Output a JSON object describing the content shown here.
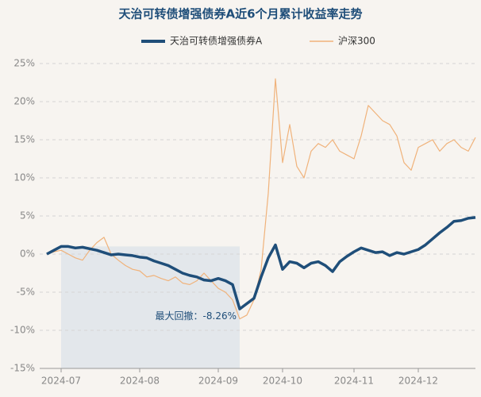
{
  "chart_data": {
    "type": "line",
    "title": "天治可转债增强债券A近6个月累计收益率走势",
    "annotation": "最大回撤：-8.26%",
    "categories": [
      null,
      null,
      "2024-07",
      null,
      null,
      null,
      null,
      null,
      null,
      null,
      null,
      null,
      null,
      "2024-08",
      null,
      null,
      null,
      null,
      null,
      null,
      null,
      null,
      null,
      null,
      "2024-09",
      null,
      null,
      null,
      null,
      null,
      null,
      null,
      null,
      "2024-10",
      null,
      null,
      null,
      null,
      null,
      null,
      null,
      null,
      null,
      "2024-11",
      null,
      null,
      null,
      null,
      null,
      null,
      null,
      null,
      "2024-12",
      null,
      null,
      null,
      null,
      null,
      null,
      null,
      null
    ],
    "series": [
      {
        "name": "天治可转债增强债券A",
        "color": "#1f4e79",
        "values": [
          0.0,
          0.5,
          1.0,
          1.0,
          0.8,
          0.9,
          0.7,
          0.5,
          0.2,
          -0.1,
          0.0,
          -0.1,
          -0.2,
          -0.4,
          -0.5,
          -0.9,
          -1.2,
          -1.5,
          -2.0,
          -2.5,
          -2.8,
          -3.0,
          -3.4,
          -3.5,
          -3.2,
          -3.5,
          -4.0,
          -7.2,
          -6.5,
          -5.8,
          -3.0,
          -0.5,
          1.2,
          -2.0,
          -1.0,
          -1.2,
          -1.8,
          -1.2,
          -1.0,
          -1.5,
          -2.3,
          -1.0,
          -0.3,
          0.3,
          0.8,
          0.5,
          0.2,
          0.3,
          -0.2,
          0.2,
          0.0,
          0.3,
          0.6,
          1.2,
          2.0,
          2.8,
          3.5,
          4.3,
          4.4,
          4.7,
          4.8
        ]
      },
      {
        "name": "沪深300",
        "color": "#f0b27a",
        "values": [
          0.0,
          0.3,
          0.5,
          0.0,
          -0.5,
          -0.8,
          0.5,
          1.5,
          2.2,
          0.0,
          -0.8,
          -1.5,
          -2.0,
          -2.2,
          -3.0,
          -2.8,
          -3.2,
          -3.5,
          -3.0,
          -3.8,
          -4.0,
          -3.5,
          -2.5,
          -3.5,
          -4.5,
          -5.0,
          -6.0,
          -8.5,
          -8.0,
          -6.0,
          -2.0,
          8.0,
          23.0,
          12.0,
          17.0,
          11.5,
          10.0,
          13.5,
          14.5,
          14.0,
          15.0,
          13.5,
          13.0,
          12.5,
          15.5,
          19.5,
          18.5,
          17.5,
          17.0,
          15.5,
          12.0,
          11.0,
          14.0,
          14.5,
          15.0,
          13.5,
          14.5,
          15.0,
          14.0,
          13.5,
          15.3
        ]
      }
    ],
    "ylim": [
      -15,
      25
    ],
    "yticks": [
      {
        "value": 25,
        "label": "25%"
      },
      {
        "value": 20,
        "label": "20%"
      },
      {
        "value": 15,
        "label": "15%"
      },
      {
        "value": 10,
        "label": "10%"
      },
      {
        "value": 5,
        "label": "5%"
      },
      {
        "value": 0,
        "label": "0%"
      },
      {
        "value": -5,
        "label": "-5%"
      },
      {
        "value": -10,
        "label": "-10%"
      },
      {
        "value": -15,
        "label": "-15%"
      }
    ],
    "grid": true
  }
}
